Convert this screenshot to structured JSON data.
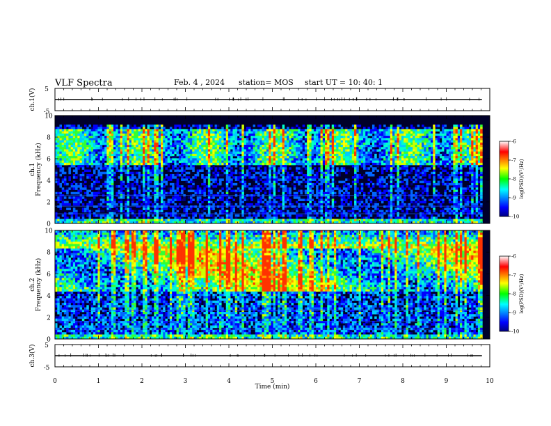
{
  "header": {
    "title": "VLF Spectra",
    "date": "Feb. 4 , 2024",
    "station": "station= MOS",
    "start": "start UT = 10: 40: 1"
  },
  "chart_data": [
    {
      "type": "line",
      "ylabel": "ch.1(V)",
      "ylim": [
        -5,
        5
      ],
      "y_ticks": [
        "5",
        "-5"
      ],
      "x": [
        0,
        10
      ],
      "values": [
        0,
        0
      ]
    },
    {
      "type": "heatmap",
      "ylabel_channel": "ch.1",
      "ylabel": "Frequency (kHz)",
      "xlim": [
        0,
        10
      ],
      "ylim": [
        0,
        10
      ],
      "y_ticks": [
        "0",
        "2",
        "4",
        "6",
        "8",
        "10"
      ],
      "colorbar": {
        "label": "log(PSD)(V²/Hz)",
        "ticks": [
          "-6",
          "-7",
          "-8",
          "-9",
          "-10"
        ],
        "range": [
          -10,
          -6
        ]
      }
    },
    {
      "type": "heatmap",
      "ylabel_channel": "ch.2",
      "ylabel": "Frequency (kHz)",
      "xlim": [
        0,
        10
      ],
      "ylim": [
        0,
        10
      ],
      "y_ticks": [
        "0",
        "2",
        "4",
        "6",
        "8",
        "10"
      ],
      "colorbar": {
        "label": "log(PSD)(V²/Hz)",
        "ticks": [
          "-6",
          "-7",
          "-8",
          "-9",
          "-10"
        ],
        "range": [
          -10,
          -6
        ]
      }
    },
    {
      "type": "line",
      "ylabel": "ch.3(V)",
      "ylim": [
        -5,
        5
      ],
      "y_ticks": [
        "5",
        "-5"
      ],
      "x": [
        0,
        10
      ],
      "values": [
        0,
        0
      ]
    }
  ],
  "x_axis": {
    "label": "Time (min)",
    "ticks": [
      "0",
      "1",
      "2",
      "3",
      "4",
      "5",
      "6",
      "7",
      "8",
      "9",
      "10"
    ]
  }
}
